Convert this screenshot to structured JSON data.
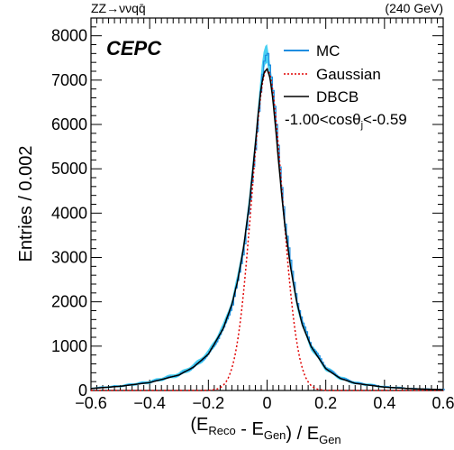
{
  "chart_data": {
    "type": "line",
    "header_left": "ZZ→ννqq̄",
    "header_right": "(240 GeV)",
    "logo": "CEPC",
    "xlabel": "(E_Reco - E_Gen) / E_Gen",
    "ylabel": "Entries / 0.002",
    "xlim": [
      -0.6,
      0.6
    ],
    "ylim": [
      0,
      8400
    ],
    "xticks": [
      -0.6,
      -0.4,
      -0.2,
      0,
      0.2,
      0.4,
      0.6
    ],
    "xtick_labels": [
      "−0.6",
      "−0.4",
      "−0.2",
      "0",
      "0.2",
      "0.4",
      "0.6"
    ],
    "yticks": [
      0,
      1000,
      2000,
      3000,
      4000,
      5000,
      6000,
      7000,
      8000
    ],
    "ytick_labels": [
      "0",
      "1000",
      "2000",
      "3000",
      "4000",
      "5000",
      "6000",
      "7000",
      "8000"
    ],
    "cut_label": "-1.00<cosθ_j<-0.59",
    "legend_position": "top-right",
    "colors": {
      "mc": "#1f8de0",
      "mc_band": "#29c8f0",
      "gaussian": "#e00000",
      "dbcb": "#000000"
    },
    "series": [
      {
        "name": "MC",
        "style": "histogram with error band",
        "x": [
          -0.6,
          -0.5,
          -0.4,
          -0.3,
          -0.25,
          -0.2,
          -0.15,
          -0.12,
          -0.1,
          -0.08,
          -0.06,
          -0.05,
          -0.04,
          -0.03,
          -0.02,
          -0.01,
          0.0,
          0.01,
          0.02,
          0.03,
          0.04,
          0.05,
          0.06,
          0.08,
          0.1,
          0.12,
          0.15,
          0.2,
          0.25,
          0.3,
          0.4,
          0.5,
          0.6
        ],
        "y": [
          50,
          100,
          190,
          360,
          540,
          830,
          1400,
          1950,
          2500,
          3250,
          4250,
          4900,
          5600,
          6350,
          7000,
          7450,
          7600,
          7250,
          6700,
          5950,
          5150,
          4450,
          3800,
          2800,
          2050,
          1500,
          1000,
          500,
          280,
          170,
          80,
          40,
          20
        ]
      },
      {
        "name": "Gaussian",
        "style": "dotted",
        "mean": 0.0,
        "sigma": 0.052,
        "peak": 7250
      },
      {
        "name": "DBCB",
        "style": "solid",
        "x": [
          -0.6,
          -0.5,
          -0.4,
          -0.3,
          -0.25,
          -0.2,
          -0.15,
          -0.12,
          -0.1,
          -0.08,
          -0.06,
          -0.05,
          -0.04,
          -0.03,
          -0.02,
          -0.01,
          0.0,
          0.01,
          0.02,
          0.03,
          0.04,
          0.05,
          0.06,
          0.08,
          0.1,
          0.12,
          0.15,
          0.2,
          0.25,
          0.3,
          0.4,
          0.5,
          0.6
        ],
        "y": [
          45,
          95,
          180,
          350,
          530,
          820,
          1390,
          1940,
          2480,
          3230,
          4230,
          4880,
          5550,
          6250,
          6850,
          7180,
          7250,
          7050,
          6550,
          5850,
          5100,
          4400,
          3750,
          2780,
          2030,
          1480,
          990,
          490,
          270,
          160,
          75,
          38,
          18
        ]
      }
    ]
  }
}
